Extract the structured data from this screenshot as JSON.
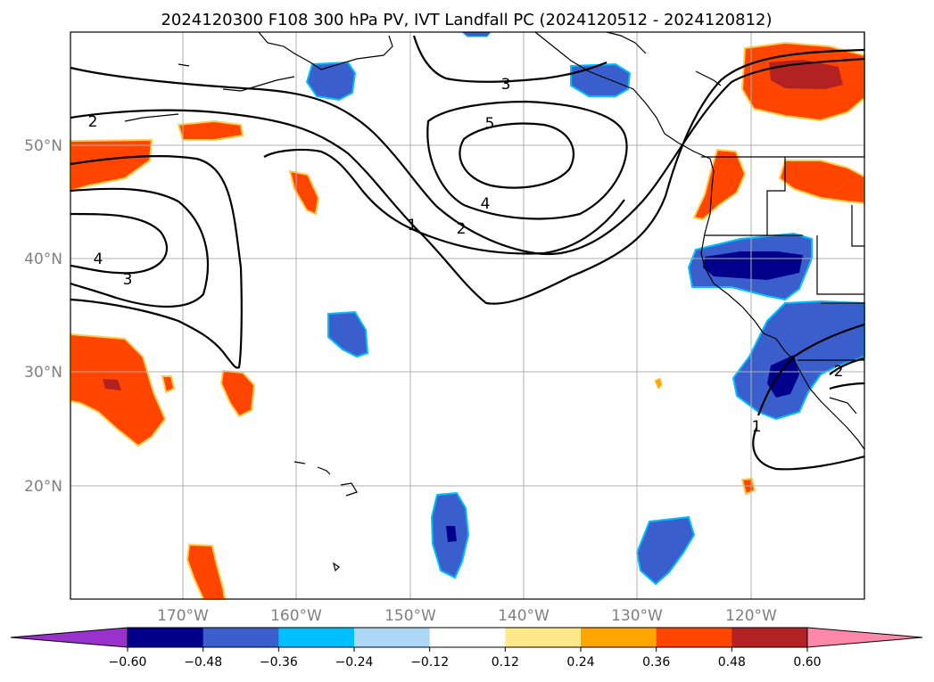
{
  "title": "2024120300 F108 300 hPa PV, IVT Landfall PC (2024120512 - 2024120812)",
  "lat_labels": [
    "50°N",
    "40°N",
    "30°N",
    "20°N"
  ],
  "lon_labels": [
    "170°W",
    "160°W",
    "150°W",
    "140°W",
    "130°W",
    "120°W"
  ],
  "colorbar": {
    "ticks": [
      "−0.60",
      "−0.48",
      "−0.36",
      "−0.24",
      "−0.12",
      "0.12",
      "0.24",
      "0.36",
      "0.48",
      "0.60"
    ],
    "colors": [
      "#9932cc",
      "#00008b",
      "#3a5fcd",
      "#00bfff",
      "#add8f5",
      "#ffffff",
      "#ffe88a",
      "#ffa500",
      "#ff4500",
      "#b22222",
      "#ff88aa"
    ]
  },
  "contour_labels": [
    "2",
    "4",
    "3",
    "1",
    "2",
    "4",
    "5",
    "3",
    "1",
    "2"
  ]
}
